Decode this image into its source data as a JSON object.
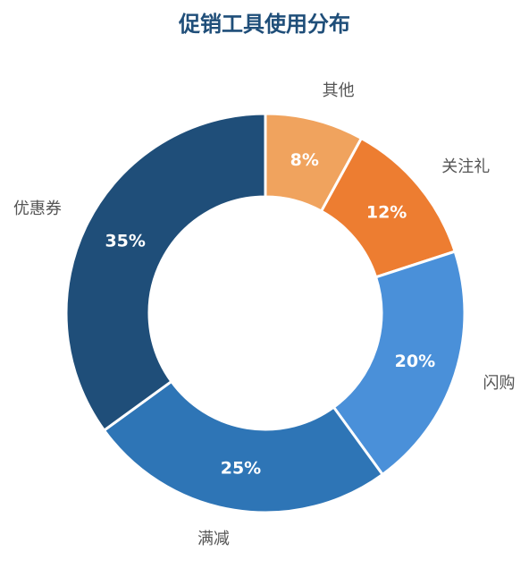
{
  "chart_data": {
    "type": "donut",
    "title": "促销工具使用分布",
    "categories": [
      "其他",
      "关注礼",
      "闪购",
      "满减",
      "优惠券"
    ],
    "values": [
      8,
      12,
      20,
      25,
      35
    ],
    "value_labels": [
      "8%",
      "12%",
      "20%",
      "25%",
      "35%"
    ],
    "colors": [
      "#f0a35e",
      "#ed7d31",
      "#4a90d9",
      "#2e75b6",
      "#1f4e79"
    ]
  }
}
